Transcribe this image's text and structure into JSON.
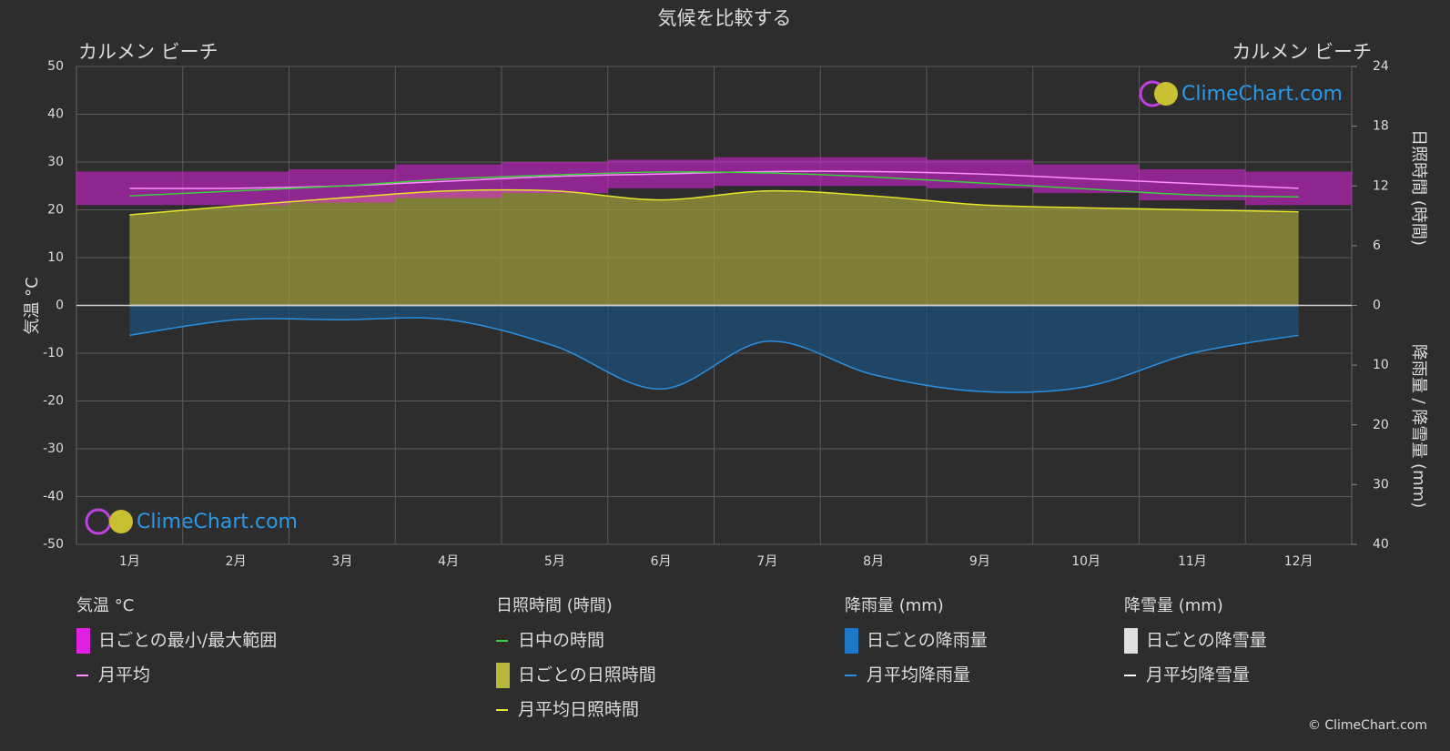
{
  "chart_data": {
    "type": "climate",
    "title": "気候を比較する",
    "location_left": "カルメン ビーチ",
    "location_right": "カルメン ビーチ",
    "y2label": "日照時間 (時間)",
    "y3label": "降雨量 / 降雪量 (mm)",
    "categories": [
      "1月",
      "2月",
      "3月",
      "4月",
      "5月",
      "6月",
      "7月",
      "8月",
      "9月",
      "10月",
      "11月",
      "12月"
    ],
    "ylim": [
      -50,
      50
    ],
    "yticks": [
      -50,
      -40,
      -30,
      -20,
      -10,
      0,
      10,
      20,
      30,
      40,
      50
    ],
    "y2lim": [
      0,
      24
    ],
    "y2ticks": [
      0,
      6,
      12,
      18,
      24
    ],
    "y3lim": [
      0,
      40
    ],
    "y3ticks": [
      10,
      20,
      30,
      40
    ],
    "grid": true,
    "series_groups": [
      {
        "title": "気温 °C",
        "series": [
          {
            "name": "日ごとの最小/最大範囲",
            "kind": "range",
            "axis": "y",
            "color": "#e020e0",
            "values": [
              28,
              28,
              28.5,
              29.5,
              30,
              30.5,
              31,
              31,
              30.5,
              29.5,
              28.5,
              28
            ],
            "low": [
              21,
              21,
              21.5,
              22.5,
              23.5,
              24.5,
              25,
              25,
              24.5,
              23.5,
              22,
              21
            ]
          },
          {
            "name": "月平均",
            "kind": "line",
            "axis": "y",
            "color": "#ff90ff",
            "values": [
              24.5,
              24.5,
              25,
              26,
              27,
              27.5,
              28,
              28,
              27.5,
              26.5,
              25.5,
              24.5
            ]
          }
        ]
      },
      {
        "title": "日照時間 (時間)",
        "series": [
          {
            "name": "日中の時間",
            "kind": "line",
            "axis": "y2",
            "color": "#3ad13a",
            "values": [
              11.0,
              11.5,
              12.0,
              12.7,
              13.1,
              13.4,
              13.3,
              12.9,
              12.3,
              11.7,
              11.1,
              10.9
            ]
          },
          {
            "name": "日ごとの日照時間",
            "kind": "daily",
            "color": "#b8b83a"
          },
          {
            "name": "月平均日照時間",
            "kind": "line",
            "axis": "y2",
            "color": "#e6e62a",
            "fill": "#9a9a3a",
            "values": [
              9.1,
              10.0,
              10.8,
              11.5,
              11.5,
              10.6,
              11.5,
              11.0,
              10.1,
              9.8,
              9.6,
              9.4
            ]
          }
        ]
      },
      {
        "title": "降雨量 (mm)",
        "series": [
          {
            "name": "日ごとの降雨量",
            "kind": "daily",
            "color": "#1e78c8"
          },
          {
            "name": "月平均降雨量",
            "kind": "line",
            "axis": "y3",
            "color": "#2a8fe0",
            "fill": "#1d4f78",
            "values": [
              5.0,
              2.4,
              2.4,
              2.4,
              6.8,
              14.0,
              6.0,
              11.6,
              14.4,
              13.6,
              8.0,
              5.0
            ]
          }
        ]
      },
      {
        "title": "降雪量 (mm)",
        "series": [
          {
            "name": "日ごとの降雪量",
            "kind": "daily",
            "color": "#e0e0e0"
          },
          {
            "name": "月平均降雪量",
            "kind": "line",
            "axis": "y3",
            "color": "#ffffff",
            "values": [
              0,
              0,
              0,
              0,
              0,
              0,
              0,
              0,
              0,
              0,
              0,
              0
            ]
          }
        ]
      }
    ],
    "watermark": "ClimeChart.com",
    "copyright": "© ClimeChart.com"
  }
}
